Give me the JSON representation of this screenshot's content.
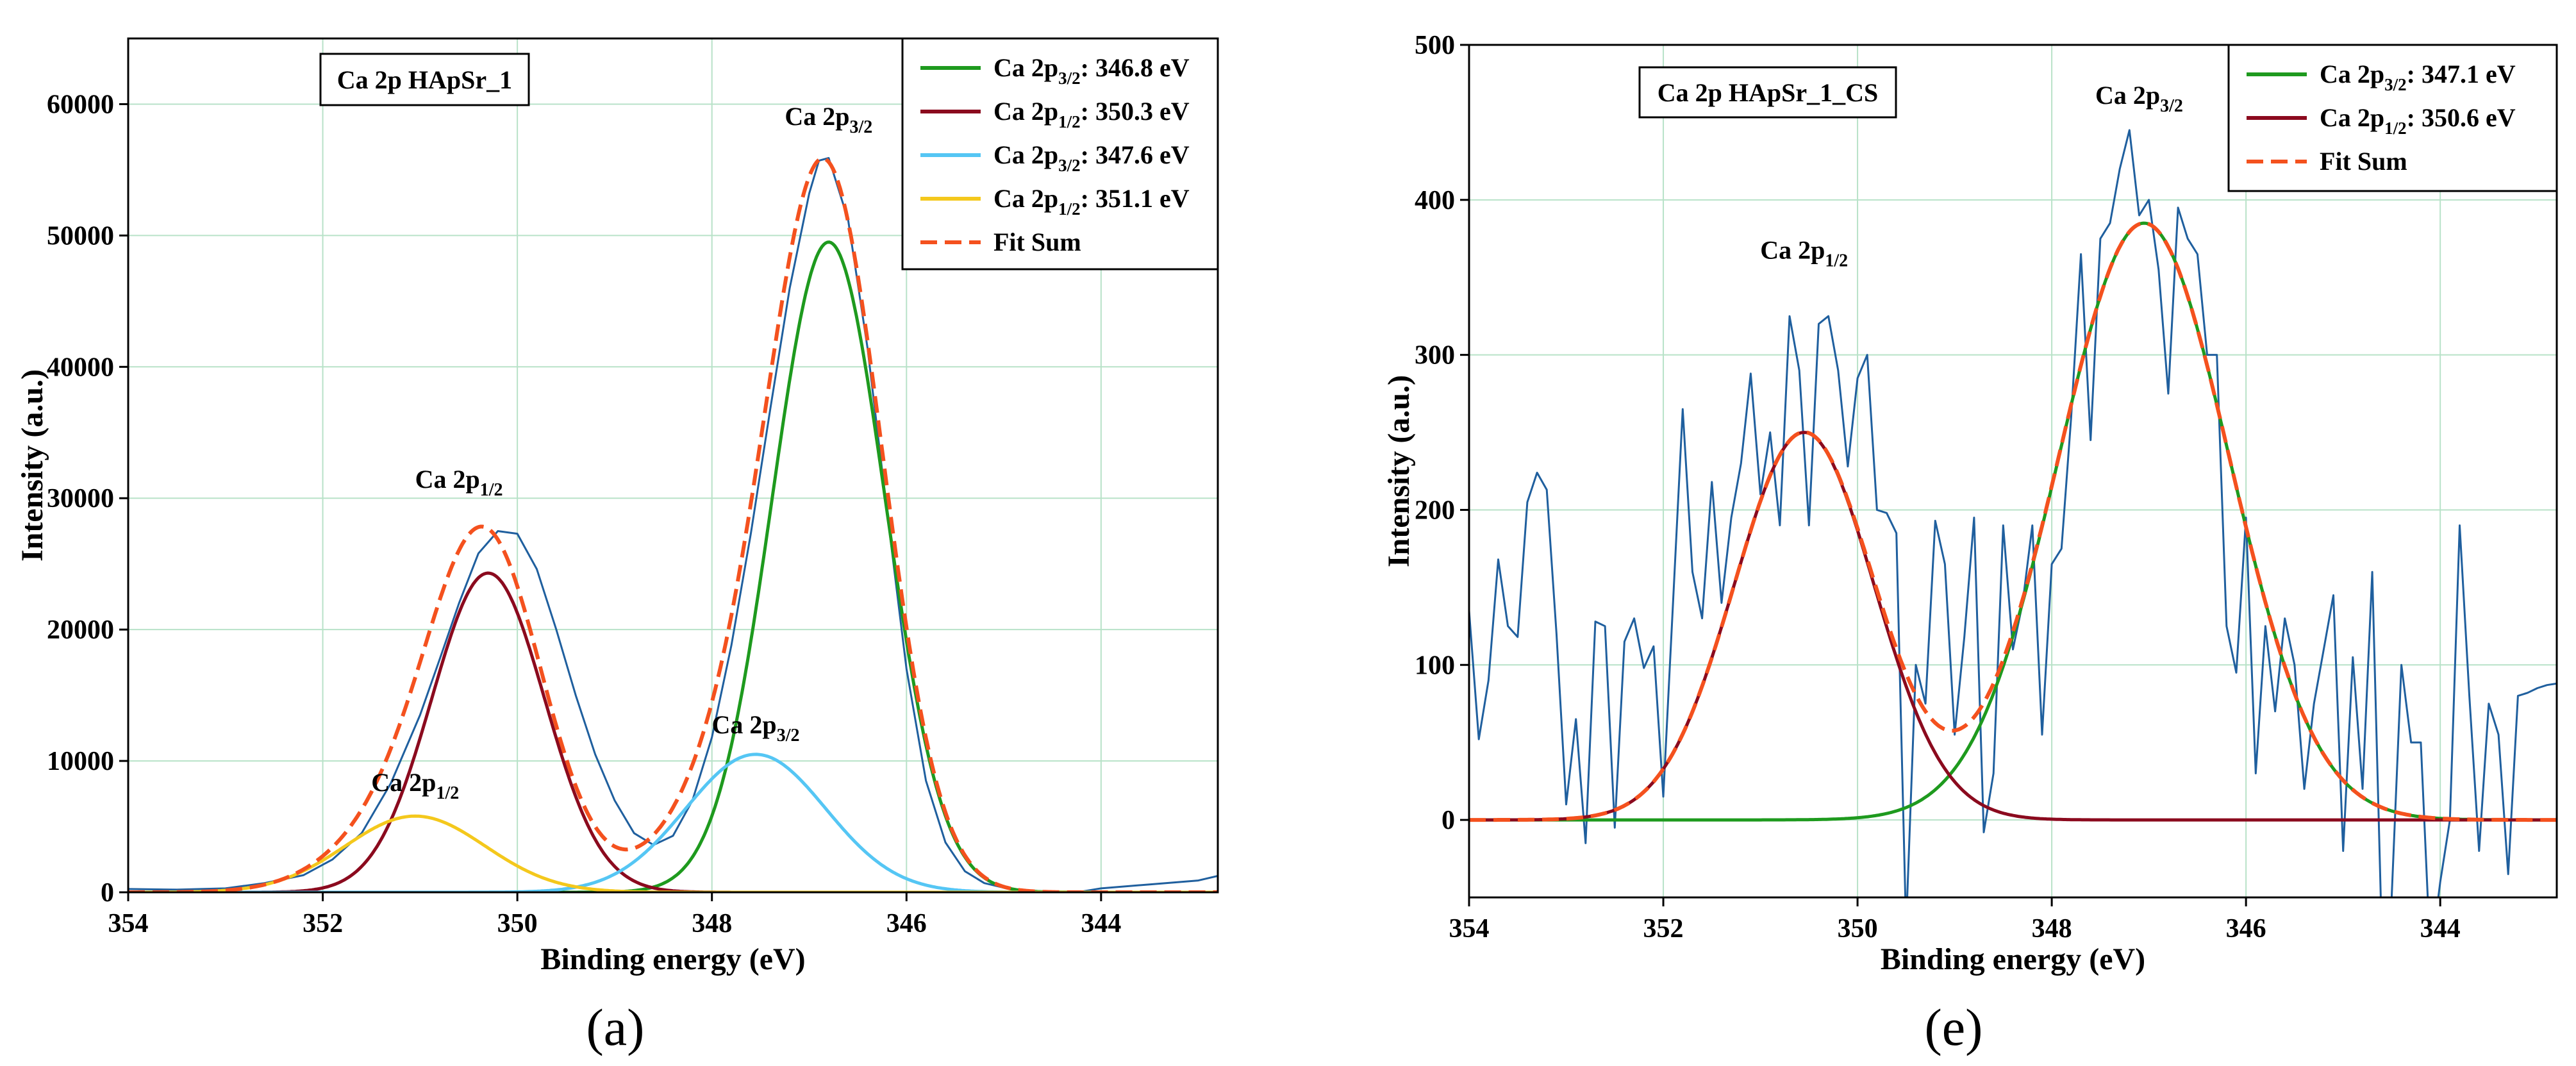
{
  "chart_data": [
    {
      "type": "line",
      "panel_label": "(a)",
      "title": "Ca 2p HApSr_1",
      "xlabel": "Binding energy (eV)",
      "ylabel": "Intensity (a.u.)",
      "xlim": [
        354,
        342.8
      ],
      "ylim": [
        0,
        65000
      ],
      "x_ticks": [
        354,
        352,
        350,
        348,
        346,
        344
      ],
      "x_tick_labels": [
        "354",
        "352",
        "350",
        "348",
        "346",
        "344"
      ],
      "y_ticks": [
        0,
        10000,
        20000,
        30000,
        40000,
        50000,
        60000
      ],
      "y_tick_labels": [
        "0",
        "10000",
        "20000",
        "30000",
        "40000",
        "50000",
        "60000"
      ],
      "grid": true,
      "legend_position": "top-right",
      "components": [
        {
          "name": "Ca 2p3/2: 346.8 eV",
          "label_main": "Ca 2p",
          "label_sub": "3/2",
          "label_value": ": 346.8 eV",
          "center": 346.8,
          "amplitude": 49500,
          "sigma": 0.58,
          "color": "#1e9a1e"
        },
        {
          "name": "Ca 2p1/2: 350.3 eV",
          "label_main": "Ca 2p",
          "label_sub": "1/2",
          "label_value": ": 350.3 eV",
          "center": 350.3,
          "amplitude": 24300,
          "sigma": 0.58,
          "color": "#8b0a1e"
        },
        {
          "name": "Ca 2p3/2: 347.6 eV",
          "label_main": "Ca 2p",
          "label_sub": "3/2",
          "label_value": ": 347.6 eV",
          "center": 347.55,
          "amplitude": 10500,
          "sigma": 0.72,
          "color": "#55c6f4"
        },
        {
          "name": "Ca 2p1/2: 351.1 eV",
          "label_main": "Ca 2p",
          "label_sub": "1/2",
          "label_value": ": 351.1 eV",
          "center": 351.05,
          "amplitude": 5800,
          "sigma": 0.72,
          "color": "#f4c81c"
        }
      ],
      "fit_sum": {
        "name": "Fit Sum",
        "color": "#f4511e"
      },
      "raw": {
        "color": "#1f5f9e",
        "x": [
          354,
          353.5,
          353,
          352.6,
          352.2,
          351.9,
          351.6,
          351.3,
          351.0,
          350.8,
          350.6,
          350.4,
          350.2,
          350.0,
          349.8,
          349.6,
          349.4,
          349.2,
          349.0,
          348.8,
          348.6,
          348.4,
          348.2,
          348.0,
          347.8,
          347.6,
          347.4,
          347.2,
          347.0,
          346.9,
          346.8,
          346.6,
          346.4,
          346.2,
          346.0,
          345.8,
          345.6,
          345.4,
          345.2,
          345.0,
          344.8,
          344.6,
          344.4,
          344.2,
          344.0,
          343.5,
          343.0,
          342.8
        ],
        "y": [
          250,
          200,
          300,
          700,
          1300,
          2500,
          4500,
          8300,
          13500,
          17700,
          22000,
          25800,
          27500,
          27300,
          24600,
          20000,
          15000,
          10500,
          7000,
          4500,
          3600,
          4300,
          7000,
          11800,
          18800,
          27300,
          36800,
          46000,
          53200,
          55700,
          55900,
          51200,
          41400,
          29000,
          17000,
          8500,
          3800,
          1600,
          700,
          350,
          150,
          80,
          50,
          60,
          300,
          600,
          900,
          1250
        ]
      },
      "annotations": [
        {
          "main": "Ca 2p",
          "sub": "3/2",
          "x": 346.8,
          "y": 58400
        },
        {
          "main": "Ca 2p",
          "sub": "1/2",
          "x": 350.6,
          "y": 30800
        },
        {
          "main": "Ca 2p",
          "sub": "3/2",
          "x": 347.55,
          "y": 12100
        },
        {
          "main": "Ca 2p",
          "sub": "1/2",
          "x": 351.05,
          "y": 7700
        }
      ]
    },
    {
      "type": "line",
      "panel_label": "(e)",
      "title": "Ca 2p HApSr_1_CS",
      "xlabel": "Binding energy (eV)",
      "ylabel": "Intensity (a.u.)",
      "xlim": [
        354,
        342.8
      ],
      "ylim": [
        -50,
        500
      ],
      "x_ticks": [
        354,
        352,
        350,
        348,
        346,
        344
      ],
      "x_tick_labels": [
        "354",
        "352",
        "350",
        "348",
        "346",
        "344"
      ],
      "y_ticks": [
        0,
        100,
        200,
        300,
        400,
        500
      ],
      "y_tick_labels": [
        "0",
        "100",
        "200",
        "300",
        "400",
        "500"
      ],
      "grid": true,
      "legend_position": "top-right",
      "components": [
        {
          "name": "Ca 2p3/2: 347.1 eV",
          "label_main": "Ca 2p",
          "label_sub": "3/2",
          "label_value": ": 347.1 eV",
          "center": 347.05,
          "amplitude": 385,
          "sigma": 0.88,
          "color": "#1e9a1e"
        },
        {
          "name": "Ca 2p1/2: 350.6 eV",
          "label_main": "Ca 2p",
          "label_sub": "1/2",
          "label_value": ": 350.6 eV",
          "center": 350.55,
          "amplitude": 250,
          "sigma": 0.72,
          "color": "#8b0a1e"
        }
      ],
      "fit_sum": {
        "name": "Fit Sum",
        "color": "#f4511e"
      },
      "raw": {
        "color": "#1f5f9e",
        "x": [
          354.0,
          353.9,
          353.8,
          353.7,
          353.6,
          353.5,
          353.4,
          353.3,
          353.2,
          353.1,
          353.0,
          352.9,
          352.8,
          352.7,
          352.6,
          352.5,
          352.4,
          352.3,
          352.2,
          352.1,
          352.0,
          351.9,
          351.8,
          351.7,
          351.6,
          351.5,
          351.4,
          351.3,
          351.2,
          351.1,
          351.0,
          350.9,
          350.8,
          350.7,
          350.6,
          350.5,
          350.4,
          350.3,
          350.2,
          350.1,
          350.0,
          349.9,
          349.8,
          349.7,
          349.6,
          349.5,
          349.4,
          349.3,
          349.2,
          349.1,
          349.0,
          348.9,
          348.8,
          348.7,
          348.6,
          348.5,
          348.4,
          348.3,
          348.2,
          348.1,
          348.0,
          347.9,
          347.8,
          347.7,
          347.6,
          347.5,
          347.4,
          347.3,
          347.2,
          347.1,
          347.0,
          346.9,
          346.8,
          346.7,
          346.6,
          346.5,
          346.4,
          346.3,
          346.2,
          346.1,
          346.0,
          345.9,
          345.8,
          345.7,
          345.6,
          345.5,
          345.4,
          345.3,
          345.2,
          345.1,
          345.0,
          344.9,
          344.8,
          344.7,
          344.6,
          344.5,
          344.4,
          344.3,
          344.2,
          344.1,
          344.0,
          343.9,
          343.8,
          343.7,
          343.6,
          343.5,
          343.4,
          343.3,
          343.2,
          343.1,
          343.0,
          342.9,
          342.8
        ],
        "y": [
          135,
          52,
          90,
          168,
          125,
          118,
          205,
          224,
          213,
          120,
          10,
          65,
          -15,
          128,
          125,
          -5,
          115,
          130,
          98,
          112,
          15,
          140,
          265,
          160,
          130,
          218,
          140,
          195,
          230,
          288,
          210,
          250,
          190,
          325,
          290,
          190,
          320,
          325,
          290,
          228,
          285,
          300,
          200,
          198,
          185,
          -70,
          100,
          75,
          193,
          165,
          55,
          118,
          195,
          -8,
          30,
          190,
          110,
          140,
          190,
          55,
          165,
          175,
          260,
          365,
          245,
          375,
          385,
          420,
          445,
          390,
          400,
          355,
          275,
          395,
          375,
          365,
          300,
          300,
          125,
          95,
          195,
          30,
          125,
          70,
          130,
          100,
          20,
          75,
          110,
          145,
          -20,
          105,
          20,
          160,
          -80,
          -50,
          100,
          50,
          50,
          -90,
          -40,
          0,
          190,
          80,
          -20,
          75,
          55,
          -35,
          80,
          82,
          85,
          87,
          88
        ]
      },
      "annotations": [
        {
          "main": "Ca 2p",
          "sub": "3/2",
          "x": 347.1,
          "y": 462
        },
        {
          "main": "Ca 2p",
          "sub": "1/2",
          "x": 350.55,
          "y": 362
        }
      ]
    }
  ]
}
